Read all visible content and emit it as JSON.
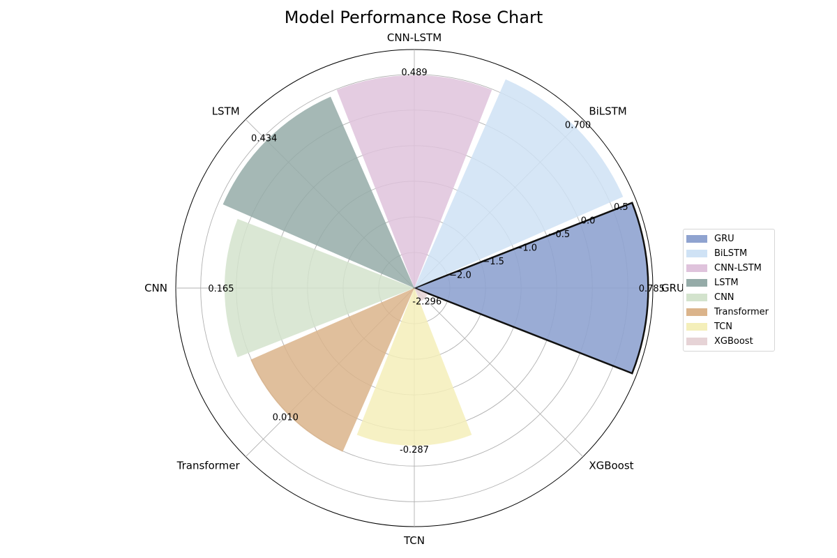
{
  "chart_data": {
    "type": "rose",
    "title": "Model Performance Rose Chart",
    "categories": [
      "GRU",
      "BiLSTM",
      "CNN-LSTM",
      "LSTM",
      "CNN",
      "Transformer",
      "TCN",
      "XGBoost"
    ],
    "values": [
      0.785,
      0.7,
      0.489,
      0.434,
      0.165,
      0.01,
      -0.287,
      -2.296
    ],
    "value_labels": [
      "0.785",
      "0.700",
      "0.489",
      "0.434",
      "0.165",
      "0.010",
      "-0.287",
      "-2.296"
    ],
    "colors": [
      "#8fa3d0",
      "#cfe2f5",
      "#dfc3dc",
      "#95aba8",
      "#d3e3cd",
      "#dbb48b",
      "#f4efba",
      "#e6d3d6"
    ],
    "highlight": "GRU",
    "radial_ticks": [
      -2.0,
      -1.5,
      -1.0,
      -0.5,
      0.0,
      0.5
    ],
    "radial_tick_labels": [
      "−2.0",
      "−1.5",
      "−1.0",
      "−0.5",
      "0.0",
      "0.5"
    ],
    "rlim": [
      -2.5,
      0.85
    ],
    "grid": true,
    "legend_position": "right"
  }
}
